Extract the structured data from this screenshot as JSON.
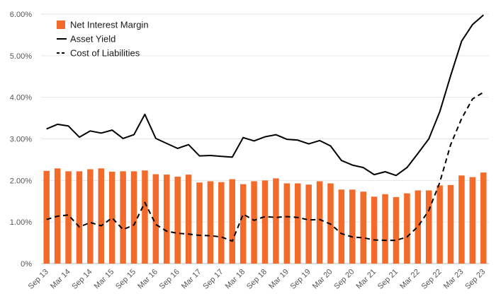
{
  "chart_data": {
    "type": "bar",
    "title": "",
    "xlabel": "",
    "ylabel": "",
    "ylim": [
      0,
      6
    ],
    "yticks": [
      0,
      1,
      2,
      3,
      4,
      5,
      6
    ],
    "ytick_labels": [
      "0%",
      "1.00%",
      "2.00%",
      "3.00%",
      "4.00%",
      "5.00%",
      "6.00%"
    ],
    "grid": true,
    "legend_position": "top-left",
    "categories": [
      "Sep 13",
      "Dec 13",
      "Mar 14",
      "Jun 14",
      "Sep 14",
      "Dec 14",
      "Mar 15",
      "Jun 15",
      "Sep 15",
      "Dec 15",
      "Mar 16",
      "Jun 16",
      "Sep 16",
      "Dec 16",
      "Mar 17",
      "Jun 17",
      "Sep 17",
      "Dec 17",
      "Mar 18",
      "Jun 18",
      "Sep 18",
      "Dec 18",
      "Mar 19",
      "Jun 19",
      "Sep 19",
      "Dec 19",
      "Mar 20",
      "Jun 20",
      "Sep 20",
      "Dec 20",
      "Mar 21",
      "Jun 21",
      "Sep 21",
      "Dec 21",
      "Mar 22",
      "Jun 22",
      "Sep 22",
      "Dec 22",
      "Mar 23",
      "Jun 23",
      "Sep 23"
    ],
    "x_tick_labels": [
      "Sep 13",
      "Mar 14",
      "Sep 14",
      "Mar 15",
      "Sep 15",
      "Mar 16",
      "Sep 16",
      "Mar 17",
      "Sep 17",
      "Mar 18",
      "Sep 18",
      "Mar 19",
      "Sep 19",
      "Mar 20",
      "Sep 20",
      "Mar 21",
      "Sep 21",
      "Mar 22",
      "Sep 22",
      "Mar 23",
      "Sep 23"
    ],
    "series": [
      {
        "name": "Net Interest Margin",
        "kind": "bar",
        "color": "#f26b2a",
        "values": [
          2.23,
          2.29,
          2.22,
          2.22,
          2.27,
          2.29,
          2.21,
          2.22,
          2.22,
          2.24,
          2.15,
          2.14,
          2.09,
          2.14,
          1.95,
          1.98,
          1.96,
          2.03,
          1.91,
          1.98,
          2.0,
          2.05,
          1.93,
          1.93,
          1.9,
          1.98,
          1.93,
          1.78,
          1.78,
          1.73,
          1.61,
          1.67,
          1.6,
          1.69,
          1.76,
          1.76,
          1.88,
          1.89,
          2.12,
          2.08,
          2.19
        ]
      },
      {
        "name": "Asset Yield",
        "kind": "line",
        "style": "solid",
        "color": "#000000",
        "values": [
          3.24,
          3.35,
          3.31,
          3.04,
          3.19,
          3.14,
          3.21,
          3.01,
          3.1,
          3.59,
          3.01,
          2.89,
          2.77,
          2.86,
          2.59,
          2.6,
          2.58,
          2.56,
          3.03,
          2.95,
          3.05,
          3.1,
          2.99,
          2.97,
          2.88,
          2.96,
          2.83,
          2.48,
          2.37,
          2.31,
          2.14,
          2.21,
          2.12,
          2.31,
          2.65,
          3.0,
          3.65,
          4.52,
          5.35,
          5.75,
          5.98
        ]
      },
      {
        "name": "Cost of Liabilities",
        "kind": "line",
        "style": "dashed",
        "color": "#000000",
        "values": [
          1.06,
          1.14,
          1.17,
          0.88,
          0.99,
          0.91,
          1.1,
          0.82,
          0.93,
          1.47,
          0.94,
          0.78,
          0.73,
          0.71,
          0.68,
          0.67,
          0.64,
          0.54,
          1.19,
          1.04,
          1.13,
          1.11,
          1.13,
          1.11,
          1.05,
          1.06,
          0.95,
          0.72,
          0.64,
          0.62,
          0.57,
          0.56,
          0.56,
          0.64,
          0.89,
          1.28,
          1.95,
          2.86,
          3.49,
          3.96,
          4.12
        ]
      }
    ]
  }
}
